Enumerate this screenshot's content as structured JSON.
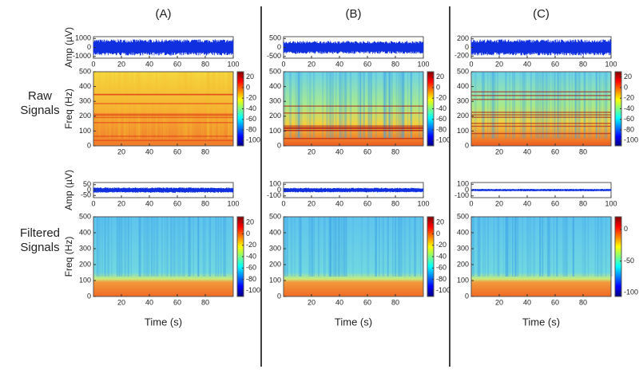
{
  "columns": [
    "(A)",
    "(B)",
    "(C)"
  ],
  "rows": [
    "Raw Signals",
    "Filtered Signals"
  ],
  "chart_data": [
    {
      "type": "signal",
      "ylabel": "Amp (µV)",
      "xlim": [
        0,
        100
      ],
      "xticks": [
        0,
        20,
        40,
        60,
        80,
        100
      ],
      "ylim": [
        -1200,
        1200
      ],
      "yticks": [
        -1000,
        0,
        1000
      ]
    },
    {
      "type": "signal",
      "xlim": [
        0,
        100
      ],
      "xticks": [
        0,
        20,
        40,
        60,
        80,
        100
      ],
      "ylim": [
        -600,
        600
      ],
      "yticks": [
        -500,
        0,
        500
      ]
    },
    {
      "type": "signal",
      "xlim": [
        0,
        100
      ],
      "xticks": [
        0,
        20,
        40,
        60,
        80,
        100
      ],
      "ylim": [
        -250,
        250
      ],
      "yticks": [
        -200,
        0,
        200
      ]
    },
    {
      "type": "spectrogram",
      "ylabel": "Freq (Hz)",
      "xlim": [
        0,
        100
      ],
      "xticks": [
        20,
        40,
        60,
        80
      ],
      "ylim": [
        0,
        500
      ],
      "yticks": [
        0,
        100,
        200,
        300,
        400,
        500
      ],
      "clim": [
        -110,
        30
      ],
      "cticks": [
        -100,
        -80,
        -60,
        -40,
        -20,
        0,
        20
      ]
    },
    {
      "type": "spectrogram",
      "xlim": [
        0,
        100
      ],
      "xticks": [
        20,
        40,
        60,
        80
      ],
      "ylim": [
        0,
        500
      ],
      "yticks": [
        0,
        100,
        200,
        300,
        400,
        500
      ],
      "clim": [
        -110,
        30
      ],
      "cticks": [
        -100,
        -80,
        -60,
        -40,
        -20,
        0,
        20
      ]
    },
    {
      "type": "spectrogram",
      "xlim": [
        0,
        100
      ],
      "xticks": [
        20,
        40,
        60,
        80
      ],
      "ylim": [
        0,
        500
      ],
      "yticks": [
        0,
        100,
        200,
        300,
        400,
        500
      ],
      "clim": [
        -110,
        30
      ],
      "cticks": [
        -100,
        -80,
        -60,
        -40,
        -20,
        0,
        20
      ]
    },
    {
      "type": "signal",
      "ylabel": "Amp (µV)",
      "xlim": [
        0,
        100
      ],
      "xticks": [
        0,
        20,
        40,
        60,
        80,
        100
      ],
      "ylim": [
        -70,
        70
      ],
      "yticks": [
        -50,
        0,
        50
      ]
    },
    {
      "type": "signal",
      "xlim": [
        0,
        100
      ],
      "xticks": [
        0,
        20,
        40,
        60,
        80,
        100
      ],
      "ylim": [
        -130,
        130
      ],
      "yticks": [
        -100,
        0,
        100
      ]
    },
    {
      "type": "signal",
      "xlim": [
        0,
        100
      ],
      "xticks": [
        0,
        20,
        40,
        60,
        80,
        100
      ],
      "ylim": [
        -130,
        130
      ],
      "yticks": [
        -100,
        0,
        100
      ]
    },
    {
      "type": "spectrogram",
      "ylabel": "Freq (Hz)",
      "xlabel": "Time (s)",
      "xlim": [
        0,
        100
      ],
      "xticks": [
        20,
        40,
        60,
        80
      ],
      "ylim": [
        0,
        500
      ],
      "yticks": [
        0,
        100,
        200,
        300,
        400,
        500
      ],
      "clim": [
        -110,
        30
      ],
      "cticks": [
        -100,
        -80,
        -60,
        -40,
        -20,
        0,
        20
      ]
    },
    {
      "type": "spectrogram",
      "xlabel": "Time (s)",
      "xlim": [
        0,
        100
      ],
      "xticks": [
        20,
        40,
        60,
        80
      ],
      "ylim": [
        0,
        500
      ],
      "yticks": [
        0,
        100,
        200,
        300,
        400,
        500
      ],
      "clim": [
        -110,
        30
      ],
      "cticks": [
        -100,
        -80,
        -60,
        -40,
        -20,
        0,
        20
      ]
    },
    {
      "type": "spectrogram",
      "xlabel": "Time (s)",
      "xlim": [
        0,
        100
      ],
      "xticks": [
        20,
        40,
        60,
        80
      ],
      "ylim": [
        0,
        500
      ],
      "yticks": [
        0,
        100,
        200,
        300,
        400,
        500
      ],
      "clim": [
        -106,
        20
      ],
      "cticks": [
        -100,
        -50,
        0
      ]
    }
  ]
}
